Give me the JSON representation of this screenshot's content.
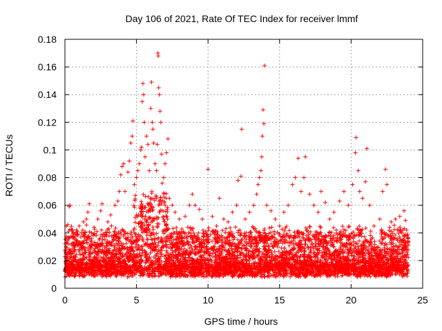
{
  "chart_data": {
    "type": "scatter",
    "title": "Day 106 of 2021, Rate Of TEC Index for receiver lmmf",
    "xlabel": "GPS time / hours",
    "ylabel": "ROTI / TECUs",
    "xlim": [
      0,
      25
    ],
    "ylim": [
      0,
      0.18
    ],
    "xticks": [
      0,
      5,
      10,
      15,
      20,
      25
    ],
    "yticks": [
      0,
      0.02,
      0.04,
      0.06,
      0.08,
      0.1,
      0.12,
      0.14,
      0.16,
      0.18
    ],
    "xtick_labels": [
      "0",
      "5",
      "10",
      "15",
      "20",
      "25"
    ],
    "ytick_labels": [
      "0",
      "0.02",
      "0.04",
      "0.06",
      "0.08",
      "0.1",
      "0.12",
      "0.14",
      "0.16",
      "0.18"
    ],
    "grid": true,
    "marker": "plus",
    "color": "#ff0000",
    "series": [
      {
        "points": [
          [
            0.1,
            0.045
          ],
          [
            0.2,
            0.046
          ],
          [
            0.3,
            0.059
          ],
          [
            0.35,
            0.06
          ],
          [
            0.5,
            0.042
          ],
          [
            1.0,
            0.045
          ],
          [
            1.3,
            0.048
          ],
          [
            1.5,
            0.05
          ],
          [
            1.6,
            0.055
          ],
          [
            1.7,
            0.061
          ],
          [
            2.3,
            0.05
          ],
          [
            2.5,
            0.056
          ],
          [
            2.6,
            0.061
          ],
          [
            3.0,
            0.048
          ],
          [
            3.2,
            0.053
          ],
          [
            3.5,
            0.06
          ],
          [
            3.7,
            0.063
          ],
          [
            3.8,
            0.07
          ],
          [
            3.9,
            0.082
          ],
          [
            4.0,
            0.088
          ],
          [
            4.1,
            0.09
          ],
          [
            4.2,
            0.07
          ],
          [
            4.4,
            0.084
          ],
          [
            4.5,
            0.092
          ],
          [
            4.6,
            0.105
          ],
          [
            4.7,
            0.11
          ],
          [
            4.75,
            0.121
          ],
          [
            4.85,
            0.075
          ],
          [
            5.0,
            0.08
          ],
          [
            5.1,
            0.085
          ],
          [
            5.2,
            0.09
          ],
          [
            5.3,
            0.1
          ],
          [
            5.35,
            0.102
          ],
          [
            5.4,
            0.135
          ],
          [
            5.45,
            0.148
          ],
          [
            5.5,
            0.14
          ],
          [
            5.55,
            0.12
          ],
          [
            5.6,
            0.095
          ],
          [
            5.7,
            0.11
          ],
          [
            5.8,
            0.104
          ],
          [
            5.9,
            0.085
          ],
          [
            6.0,
            0.13
          ],
          [
            6.05,
            0.149
          ],
          [
            6.1,
            0.12
          ],
          [
            6.15,
            0.115
          ],
          [
            6.2,
            0.105
          ],
          [
            6.3,
            0.09
          ],
          [
            6.4,
            0.085
          ],
          [
            6.45,
            0.104
          ],
          [
            6.5,
            0.17
          ],
          [
            6.52,
            0.168
          ],
          [
            6.55,
            0.145
          ],
          [
            6.6,
            0.14
          ],
          [
            6.65,
            0.128
          ],
          [
            6.7,
            0.12
          ],
          [
            6.75,
            0.097
          ],
          [
            6.8,
            0.076
          ],
          [
            6.9,
            0.08
          ],
          [
            7.0,
            0.09
          ],
          [
            7.1,
            0.098
          ],
          [
            7.2,
            0.108
          ],
          [
            7.3,
            0.065
          ],
          [
            7.5,
            0.06
          ],
          [
            7.7,
            0.055
          ],
          [
            8.0,
            0.05
          ],
          [
            8.4,
            0.052
          ],
          [
            8.7,
            0.06
          ],
          [
            8.9,
            0.068
          ],
          [
            9.1,
            0.06
          ],
          [
            9.4,
            0.057
          ],
          [
            9.6,
            0.05
          ],
          [
            10.0,
            0.086
          ],
          [
            10.3,
            0.052
          ],
          [
            10.6,
            0.045
          ],
          [
            10.8,
            0.065
          ],
          [
            11.1,
            0.05
          ],
          [
            11.4,
            0.048
          ],
          [
            11.7,
            0.055
          ],
          [
            12.0,
            0.06
          ],
          [
            12.1,
            0.078
          ],
          [
            12.3,
            0.081
          ],
          [
            12.35,
            0.115
          ],
          [
            12.6,
            0.05
          ],
          [
            12.9,
            0.055
          ],
          [
            13.2,
            0.06
          ],
          [
            13.4,
            0.068
          ],
          [
            13.5,
            0.075
          ],
          [
            13.6,
            0.08
          ],
          [
            13.7,
            0.085
          ],
          [
            13.75,
            0.095
          ],
          [
            13.8,
            0.11
          ],
          [
            13.85,
            0.129
          ],
          [
            13.9,
            0.119
          ],
          [
            13.95,
            0.161
          ],
          [
            14.1,
            0.06
          ],
          [
            14.4,
            0.056
          ],
          [
            14.7,
            0.05
          ],
          [
            15.0,
            0.045
          ],
          [
            15.3,
            0.055
          ],
          [
            15.6,
            0.06
          ],
          [
            15.9,
            0.075
          ],
          [
            16.1,
            0.08
          ],
          [
            16.3,
            0.094
          ],
          [
            16.5,
            0.07
          ],
          [
            16.7,
            0.08
          ],
          [
            16.8,
            0.095
          ],
          [
            17.1,
            0.068
          ],
          [
            17.4,
            0.06
          ],
          [
            17.7,
            0.055
          ],
          [
            17.9,
            0.07
          ],
          [
            18.2,
            0.062
          ],
          [
            18.5,
            0.05
          ],
          [
            18.8,
            0.055
          ],
          [
            19.2,
            0.063
          ],
          [
            19.5,
            0.07
          ],
          [
            19.8,
            0.06
          ],
          [
            20.1,
            0.075
          ],
          [
            20.3,
            0.098
          ],
          [
            20.35,
            0.109
          ],
          [
            20.5,
            0.085
          ],
          [
            20.6,
            0.07
          ],
          [
            20.8,
            0.065
          ],
          [
            21.0,
            0.077
          ],
          [
            21.1,
            0.101
          ],
          [
            21.3,
            0.06
          ],
          [
            21.6,
            0.045
          ],
          [
            22.0,
            0.05
          ],
          [
            22.2,
            0.07
          ],
          [
            22.4,
            0.086
          ],
          [
            22.5,
            0.075
          ],
          [
            22.8,
            0.048
          ],
          [
            23.1,
            0.05
          ],
          [
            23.4,
            0.052
          ],
          [
            23.7,
            0.056
          ],
          [
            23.8,
            0.049
          ]
        ]
      }
    ]
  }
}
